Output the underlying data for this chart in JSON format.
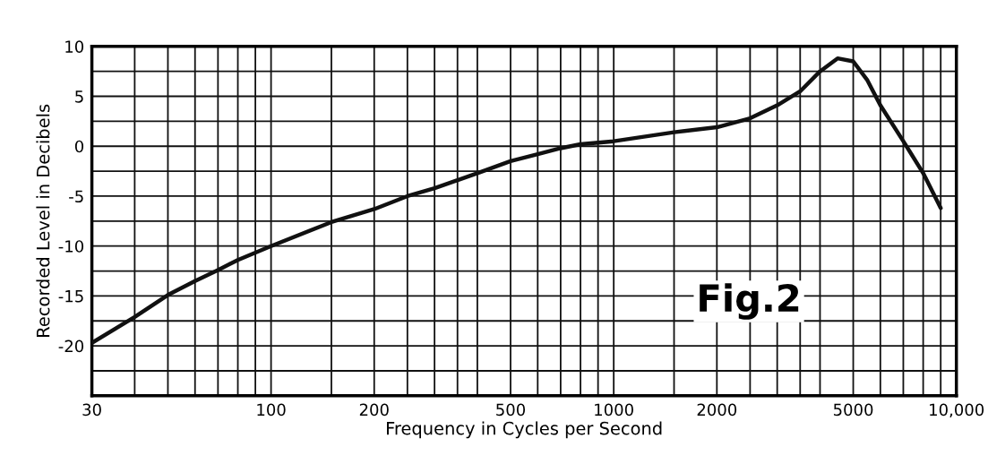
{
  "chart_data": {
    "type": "line",
    "xlabel": "Frequency in Cycles per Second",
    "ylabel": "Recorded Level in Decibels",
    "log": "x",
    "grid": true,
    "xlim": [
      30,
      10000
    ],
    "ylim": [
      -25,
      10
    ],
    "xticks": [
      30,
      {
        "value": 40,
        "label": null
      },
      {
        "value": 50,
        "label": null
      },
      {
        "value": 60,
        "label": null
      },
      {
        "value": 70,
        "label": null
      },
      {
        "value": 80,
        "label": null
      },
      {
        "value": 90,
        "label": null
      },
      100,
      {
        "value": 150,
        "label": null
      },
      200,
      {
        "value": 250,
        "label": null
      },
      {
        "value": 300,
        "label": null
      },
      {
        "value": 350,
        "label": null
      },
      {
        "value": 400,
        "label": null
      },
      500,
      {
        "value": 600,
        "label": null
      },
      {
        "value": 700,
        "label": null
      },
      {
        "value": 800,
        "label": null
      },
      {
        "value": 900,
        "label": null
      },
      1000,
      {
        "value": 1500,
        "label": null
      },
      2000,
      {
        "value": 2500,
        "label": null
      },
      {
        "value": 3000,
        "label": null
      },
      {
        "value": 3500,
        "label": null
      },
      {
        "value": 4000,
        "label": null
      },
      5000,
      {
        "value": 6000,
        "label": null
      },
      {
        "value": 7000,
        "label": null
      },
      {
        "value": 8000,
        "label": null
      },
      {
        "value": 9000,
        "label": null
      },
      {
        "value": 10000,
        "label": "10,000"
      }
    ],
    "yticks": [
      10,
      {
        "value": 7.5,
        "label": null
      },
      5,
      {
        "value": 2.5,
        "label": null
      },
      0,
      {
        "value": -2.5,
        "label": null
      },
      -5,
      {
        "value": -7.5,
        "label": null
      },
      -10,
      {
        "value": -12.5,
        "label": null
      },
      -15,
      {
        "value": -17.5,
        "label": null
      },
      -20,
      {
        "value": -22.5,
        "label": null
      },
      {
        "value": -25,
        "label": null
      }
    ],
    "line_style": "solid",
    "series": [
      {
        "color": "#111111",
        "x": [
          30,
          40,
          50,
          60,
          70,
          80,
          100,
          150,
          200,
          250,
          300,
          400,
          500,
          600,
          700,
          800,
          1000,
          1500,
          2000,
          2500,
          3000,
          3500,
          4000,
          4500,
          5000,
          5500,
          6000,
          7000,
          8000,
          9000
        ],
        "values": [
          -19.7,
          -17.1,
          -14.9,
          -13.5,
          -12.4,
          -11.4,
          -10,
          -7.6,
          -6.3,
          -5.0,
          -4.2,
          -2.7,
          -1.5,
          -0.8,
          -0.2,
          0.2,
          0.5,
          1.4,
          1.9,
          2.8,
          4.1,
          5.5,
          7.5,
          8.8,
          8.5,
          6.6,
          4.1,
          0.5,
          -2.7,
          -6.2
        ]
      }
    ],
    "annotations": [
      "Fig.2"
    ]
  }
}
